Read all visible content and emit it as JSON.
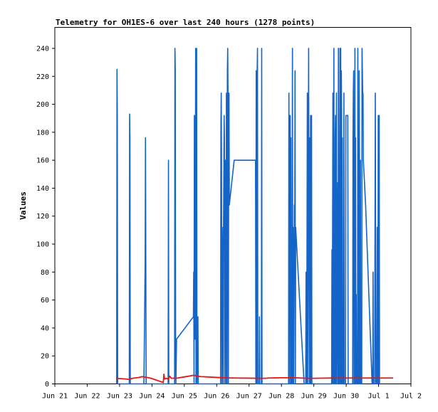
{
  "chart_data": {
    "type": "line",
    "title": "Telemetry for OH1ES-6 over last 240 hours (1278 points)",
    "xlabel": "",
    "ylabel": "Values",
    "xlim": [
      "2012-06-21",
      "2012-07-02"
    ],
    "ylim": [
      0,
      255
    ],
    "x_ticks": [
      {
        "label": "Jun 21",
        "day": 0
      },
      {
        "label": "Jun 22",
        "day": 1
      },
      {
        "label": "Jun 23",
        "day": 2
      },
      {
        "label": "Jun 24",
        "day": 3
      },
      {
        "label": "Jun 25",
        "day": 4
      },
      {
        "label": "Jun 26",
        "day": 5
      },
      {
        "label": "Jun 27",
        "day": 6
      },
      {
        "label": "Jun 28",
        "day": 7
      },
      {
        "label": "Jun 29",
        "day": 8
      },
      {
        "label": "Jun 30",
        "day": 9
      },
      {
        "label": "Jul 1",
        "day": 10
      },
      {
        "label": "Jul 2",
        "day": 11
      }
    ],
    "y_ticks": [
      0,
      20,
      40,
      60,
      80,
      100,
      120,
      140,
      160,
      180,
      200,
      220,
      240
    ],
    "grid": false,
    "series": [
      {
        "color": "#1565c8",
        "points": [
          [
            1.91,
            0
          ],
          [
            1.92,
            225
          ],
          [
            1.93,
            192
          ],
          [
            1.935,
            96
          ],
          [
            1.94,
            0
          ],
          [
            2.3,
            0
          ],
          [
            2.31,
            193
          ],
          [
            2.32,
            176
          ],
          [
            2.33,
            0
          ],
          [
            2.75,
            0
          ],
          [
            2.77,
            40
          ],
          [
            2.78,
            64
          ],
          [
            2.79,
            88
          ],
          [
            2.8,
            176
          ],
          [
            2.81,
            88
          ],
          [
            2.82,
            0
          ],
          [
            3.5,
            0
          ],
          [
            3.51,
            160
          ],
          [
            3.52,
            0
          ],
          [
            3.7,
            0
          ],
          [
            3.71,
            240
          ],
          [
            3.72,
            225
          ],
          [
            3.73,
            32
          ],
          [
            3.74,
            0
          ],
          [
            3.76,
            32
          ],
          [
            4.28,
            48
          ],
          [
            4.29,
            80
          ],
          [
            4.3,
            0
          ],
          [
            4.31,
            192
          ],
          [
            4.32,
            48
          ],
          [
            4.33,
            32
          ],
          [
            4.34,
            112
          ],
          [
            4.35,
            240
          ],
          [
            4.36,
            0
          ],
          [
            4.38,
            240
          ],
          [
            4.39,
            0
          ],
          [
            4.41,
            40
          ],
          [
            4.42,
            48
          ],
          [
            4.43,
            0
          ],
          [
            5.12,
            0
          ],
          [
            5.13,
            184
          ],
          [
            5.14,
            208
          ],
          [
            5.15,
            160
          ],
          [
            5.16,
            0
          ],
          [
            5.17,
            112
          ],
          [
            5.18,
            96
          ],
          [
            5.2,
            0
          ],
          [
            5.21,
            112
          ],
          [
            5.23,
            192
          ],
          [
            5.24,
            176
          ],
          [
            5.25,
            0
          ],
          [
            5.26,
            112
          ],
          [
            5.27,
            160
          ],
          [
            5.28,
            144
          ],
          [
            5.29,
            0
          ],
          [
            5.3,
            208
          ],
          [
            5.31,
            104
          ],
          [
            5.32,
            0
          ],
          [
            5.33,
            224
          ],
          [
            5.34,
            240
          ],
          [
            5.35,
            208
          ],
          [
            5.36,
            0
          ],
          [
            5.37,
            176
          ],
          [
            5.38,
            208
          ],
          [
            5.39,
            128
          ],
          [
            5.54,
            160
          ],
          [
            6.2,
            160
          ],
          [
            6.21,
            0
          ],
          [
            6.22,
            224
          ],
          [
            6.23,
            112
          ],
          [
            6.24,
            0
          ],
          [
            6.25,
            224
          ],
          [
            6.26,
            240
          ],
          [
            6.27,
            0
          ],
          [
            6.31,
            0
          ],
          [
            6.32,
            48
          ],
          [
            6.33,
            0
          ],
          [
            6.38,
            0
          ],
          [
            6.39,
            240
          ],
          [
            6.4,
            0
          ],
          [
            7.22,
            0
          ],
          [
            7.23,
            208
          ],
          [
            7.24,
            0
          ],
          [
            7.25,
            192
          ],
          [
            7.26,
            176
          ],
          [
            7.27,
            192
          ],
          [
            7.28,
            0
          ],
          [
            7.29,
            176
          ],
          [
            7.3,
            0
          ],
          [
            7.31,
            96
          ],
          [
            7.32,
            0
          ],
          [
            7.33,
            112
          ],
          [
            7.34,
            240
          ],
          [
            7.35,
            0
          ],
          [
            7.36,
            112
          ],
          [
            7.38,
            0
          ],
          [
            7.4,
            128
          ],
          [
            7.41,
            80
          ],
          [
            7.42,
            224
          ],
          [
            7.43,
            0
          ],
          [
            7.44,
            112
          ],
          [
            7.7,
            0
          ],
          [
            7.75,
            0
          ],
          [
            7.76,
            80
          ],
          [
            7.78,
            0
          ],
          [
            7.8,
            208
          ],
          [
            7.81,
            0
          ],
          [
            7.84,
            240
          ],
          [
            7.86,
            0
          ],
          [
            7.88,
            176
          ],
          [
            7.89,
            0
          ],
          [
            7.9,
            192
          ],
          [
            7.91,
            176
          ],
          [
            7.92,
            0
          ],
          [
            7.93,
            192
          ],
          [
            7.94,
            0
          ],
          [
            8.55,
            0
          ],
          [
            8.56,
            96
          ],
          [
            8.57,
            0
          ],
          [
            8.58,
            112
          ],
          [
            8.59,
            208
          ],
          [
            8.6,
            0
          ],
          [
            8.61,
            112
          ],
          [
            8.62,
            240
          ],
          [
            8.63,
            0
          ],
          [
            8.64,
            96
          ],
          [
            8.65,
            0
          ],
          [
            8.66,
            176
          ],
          [
            8.67,
            192
          ],
          [
            8.68,
            0
          ],
          [
            8.7,
            208
          ],
          [
            8.71,
            0
          ],
          [
            8.74,
            144
          ],
          [
            8.75,
            0
          ],
          [
            8.76,
            240
          ],
          [
            8.77,
            0
          ],
          [
            8.78,
            128
          ],
          [
            8.79,
            0
          ],
          [
            8.8,
            176
          ],
          [
            8.81,
            240
          ],
          [
            8.82,
            0
          ],
          [
            8.83,
            240
          ],
          [
            8.84,
            0
          ],
          [
            8.85,
            224
          ],
          [
            8.86,
            192
          ],
          [
            8.87,
            0
          ],
          [
            8.88,
            176
          ],
          [
            8.89,
            0
          ],
          [
            8.92,
            0
          ],
          [
            8.93,
            208
          ],
          [
            8.94,
            0
          ],
          [
            8.98,
            0
          ],
          [
            8.99,
            192
          ],
          [
            9.05,
            192
          ],
          [
            9.06,
            0
          ],
          [
            9.2,
            0
          ],
          [
            9.21,
            176
          ],
          [
            9.22,
            208
          ],
          [
            9.23,
            224
          ],
          [
            9.24,
            0
          ],
          [
            9.26,
            0
          ],
          [
            9.27,
            240
          ],
          [
            9.28,
            0
          ],
          [
            9.29,
            176
          ],
          [
            9.3,
            0
          ],
          [
            9.31,
            64
          ],
          [
            9.32,
            0
          ],
          [
            9.35,
            0
          ],
          [
            9.36,
            240
          ],
          [
            9.37,
            0
          ],
          [
            9.39,
            0
          ],
          [
            9.4,
            224
          ],
          [
            9.41,
            160
          ],
          [
            9.42,
            0
          ],
          [
            9.44,
            160
          ],
          [
            9.45,
            0
          ],
          [
            9.48,
            0
          ],
          [
            9.49,
            240
          ],
          [
            9.5,
            224
          ],
          [
            9.51,
            208
          ],
          [
            9.52,
            208
          ],
          [
            9.53,
            160
          ],
          [
            9.6,
            128
          ],
          [
            9.8,
            0
          ],
          [
            9.82,
            0
          ],
          [
            9.83,
            80
          ],
          [
            9.84,
            0
          ],
          [
            9.88,
            0
          ],
          [
            9.89,
            112
          ],
          [
            9.9,
            208
          ],
          [
            9.91,
            96
          ],
          [
            9.92,
            0
          ],
          [
            9.95,
            0
          ],
          [
            9.96,
            112
          ],
          [
            9.97,
            64
          ],
          [
            9.98,
            0
          ],
          [
            9.99,
            192
          ],
          [
            10.0,
            96
          ],
          [
            10.01,
            0
          ],
          [
            10.02,
            192
          ],
          [
            10.03,
            0
          ],
          [
            10.05,
            0
          ]
        ]
      },
      {
        "color": "#e01818",
        "points": [
          [
            1.9,
            4
          ],
          [
            2.0,
            3.8
          ],
          [
            2.2,
            3.5
          ],
          [
            2.3,
            3.2
          ],
          [
            2.4,
            4
          ],
          [
            2.6,
            4.6
          ],
          [
            2.7,
            5.2
          ],
          [
            2.78,
            4.8
          ],
          [
            2.9,
            4.4
          ],
          [
            3.0,
            3.8
          ],
          [
            3.1,
            3
          ],
          [
            3.2,
            2.2
          ],
          [
            3.3,
            1.4
          ],
          [
            3.35,
            1
          ],
          [
            3.37,
            7
          ],
          [
            3.39,
            3.5
          ],
          [
            3.45,
            4
          ],
          [
            3.5,
            3.5
          ],
          [
            3.55,
            5.5
          ],
          [
            3.6,
            4
          ],
          [
            3.8,
            4.2
          ],
          [
            4.0,
            5
          ],
          [
            4.2,
            5.8
          ],
          [
            4.28,
            6.2
          ],
          [
            4.5,
            5.2
          ],
          [
            4.7,
            5
          ],
          [
            5.0,
            4.6
          ],
          [
            5.3,
            4.3
          ],
          [
            5.6,
            4.2
          ],
          [
            6.0,
            4.1
          ],
          [
            6.3,
            4
          ],
          [
            6.5,
            4
          ],
          [
            6.6,
            4.2
          ],
          [
            7.0,
            4.4
          ],
          [
            7.4,
            4.4
          ],
          [
            7.6,
            4.2
          ],
          [
            7.8,
            4
          ],
          [
            8.0,
            4
          ],
          [
            8.5,
            4.2
          ],
          [
            9.0,
            4.2
          ],
          [
            9.5,
            4.2
          ],
          [
            10.0,
            4.2
          ],
          [
            10.3,
            4.2
          ],
          [
            10.45,
            4.2
          ]
        ]
      }
    ]
  }
}
